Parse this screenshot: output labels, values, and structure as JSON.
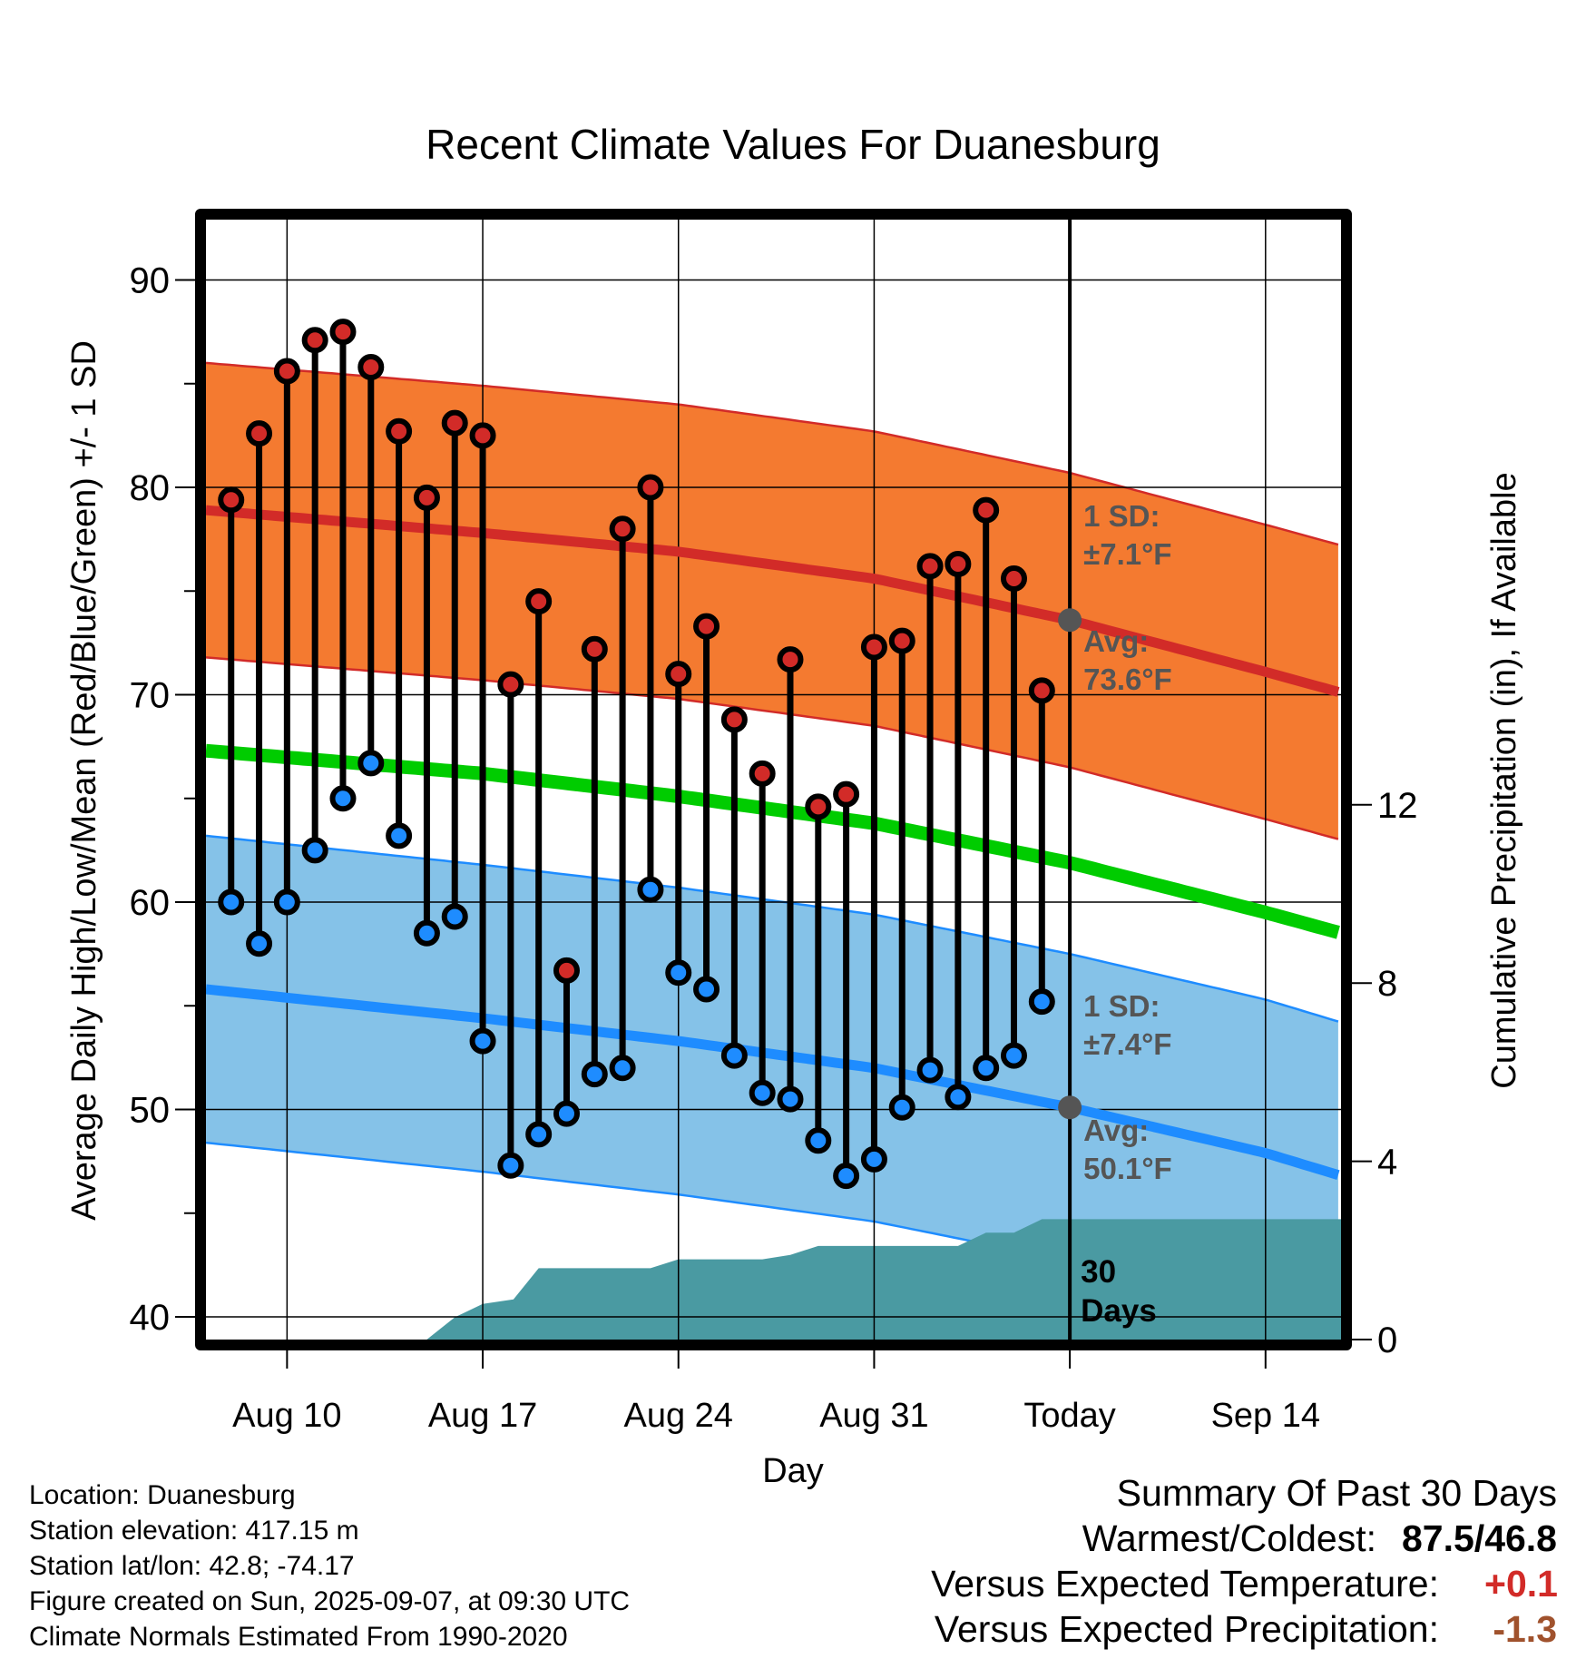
{
  "chart_data": {
    "type": "line",
    "title": "Recent Climate Values For Duanesburg",
    "xlabel": "Day",
    "ylabel": "Average Daily High/Low/Mean (Red/Blue/Green) +/- 1 SD",
    "y2label": "Cumulative Precipitation (in), If Available",
    "ylim": [
      39,
      93
    ],
    "y2lim": [
      0,
      29.8
    ],
    "xlim": [
      -7.8,
      9.7
    ],
    "x_ticks": [
      {
        "day": -28,
        "label": "Aug 10"
      },
      {
        "day": -21,
        "label": "Aug 17"
      },
      {
        "day": -14,
        "label": "Aug 24"
      },
      {
        "day": -7,
        "label": "Aug 31"
      },
      {
        "day": 0,
        "label": "Today"
      },
      {
        "day": 7,
        "label": "Sep 14"
      }
    ],
    "y_ticks": [
      40,
      50,
      60,
      70,
      80,
      90
    ],
    "y2_ticks": [
      0,
      4,
      8,
      12
    ],
    "grid": true,
    "normals": {
      "days": [
        -30.9,
        -21,
        -14,
        -7,
        0,
        7,
        9.7
      ],
      "high_mean": [
        78.9,
        77.8,
        76.9,
        75.6,
        73.6,
        71.1,
        70.1
      ],
      "high_sd": 7.1,
      "low_mean": [
        55.8,
        54.4,
        53.3,
        52.0,
        50.1,
        47.9,
        46.8
      ],
      "low_sd": 7.4,
      "mean": [
        67.3,
        66.2,
        65.1,
        63.8,
        61.9,
        59.5,
        58.5
      ]
    },
    "daily": {
      "days": [
        -30,
        -29,
        -28,
        -27,
        -26,
        -25,
        -24,
        -23,
        -22,
        -21,
        -20,
        -19,
        -18,
        -17,
        -16,
        -15,
        -14,
        -13,
        -12,
        -11,
        -10,
        -9,
        -8,
        -7,
        -6,
        -5,
        -4,
        -3,
        -2,
        -1
      ],
      "highs": [
        79.4,
        82.6,
        85.6,
        87.1,
        87.5,
        85.8,
        82.7,
        79.5,
        83.1,
        82.5,
        70.5,
        74.5,
        56.7,
        72.2,
        78.0,
        80.0,
        71.0,
        73.3,
        68.8,
        66.2,
        71.7,
        64.6,
        65.2,
        72.3,
        72.6,
        76.2,
        76.3,
        78.9,
        75.6,
        70.2
      ],
      "lows": [
        60.0,
        58.0,
        60.0,
        62.5,
        65.0,
        66.7,
        63.2,
        58.5,
        59.3,
        53.3,
        47.3,
        48.8,
        49.8,
        51.7,
        52.0,
        60.6,
        56.6,
        55.8,
        52.6,
        50.8,
        50.5,
        48.5,
        46.8,
        47.6,
        50.1,
        51.9,
        50.6,
        52.0,
        52.6,
        55.2
      ]
    },
    "precipitation_cumulative": {
      "days": [
        -30.9,
        -23,
        -22,
        -21,
        -19.9,
        -19,
        -18,
        -15,
        -14,
        -11,
        -10,
        -9,
        -8,
        -4,
        -3,
        -2,
        -1,
        9.7
      ],
      "values": [
        0,
        0,
        0.5,
        0.8,
        0.9,
        1.6,
        1.6,
        1.6,
        1.8,
        1.8,
        1.9,
        2.1,
        2.1,
        2.1,
        2.4,
        2.4,
        2.7,
        2.7
      ]
    },
    "annotations": {
      "high_sd_label": "1 SD:",
      "high_sd_value": "±7.1°F",
      "high_avg_label": "Avg:",
      "high_avg_value": "73.6°F",
      "low_sd_label": "1 SD:",
      "low_sd_value": "±7.4°F",
      "low_avg_label": "Avg:",
      "low_avg_value": "50.1°F",
      "precip_days_line1": "30",
      "precip_days_line2": "Days"
    },
    "colors": {
      "high_band": "#f47a30",
      "high_line": "#d22b28",
      "low_band": "#85c2e8",
      "low_line": "#1e8cff",
      "mean_line": "#00cc00",
      "precip_fill": "#4a9aa2",
      "avg_marker": "#555555",
      "high_dot": "#d22b28",
      "low_dot": "#1e8cff"
    }
  },
  "info": {
    "location": "Location: Duanesburg",
    "elevation": "Station elevation: 417.15 m",
    "latlon": "Station lat/lon: 42.8; -74.17",
    "created": "Figure created on Sun, 2025-09-07, at 09:30 UTC",
    "normals": "Climate Normals Estimated From 1990-2020"
  },
  "summary": {
    "heading": "Summary Of Past 30 Days",
    "warmest_label": "Warmest/Coldest:",
    "warmest_value": "87.5/46.8",
    "temp_label": "Versus Expected Temperature:",
    "temp_value": "+0.1",
    "temp_color": "#d22b28",
    "precip_label": "Versus Expected Precipitation:",
    "precip_value": "-1.3",
    "precip_color": "#a0522d"
  }
}
